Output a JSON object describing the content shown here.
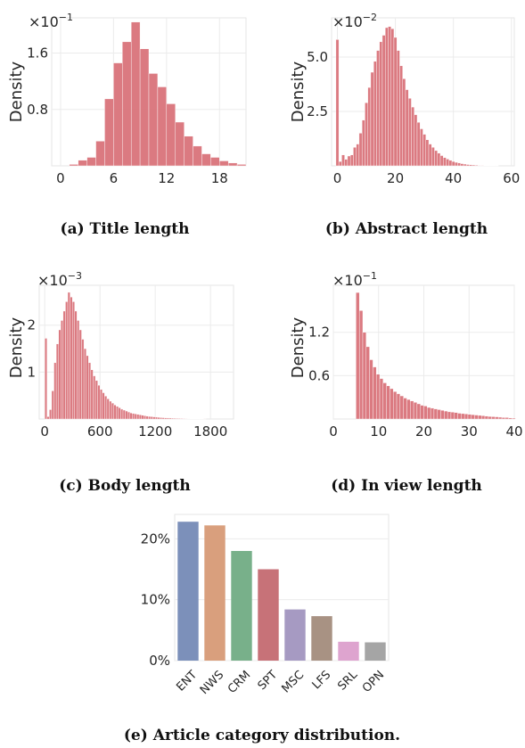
{
  "chart_data": [
    {
      "id": "title",
      "type": "bar",
      "caption": "(a) Title length",
      "ylabel": "Density",
      "multiplier_base": "×10",
      "multiplier_exp": "−1",
      "xlim": [
        -1,
        21
      ],
      "ylim": [
        0,
        2.1
      ],
      "xticks": [
        {
          "v": 0,
          "label": "0"
        },
        {
          "v": 6,
          "label": "6"
        },
        {
          "v": 12,
          "label": "12"
        },
        {
          "v": 18,
          "label": "18"
        }
      ],
      "yticks": [
        {
          "v": 0.8,
          "label": "0.8"
        },
        {
          "v": 1.6,
          "label": "1.6"
        }
      ],
      "bin_start": 1,
      "bin_width": 1,
      "values": [
        0.02,
        0.08,
        0.12,
        0.35,
        0.95,
        1.46,
        1.76,
        2.04,
        1.66,
        1.31,
        1.12,
        0.88,
        0.62,
        0.42,
        0.28,
        0.17,
        0.12,
        0.07,
        0.04,
        0.02
      ],
      "bar_color": "#d9737a"
    },
    {
      "id": "abstract",
      "type": "bar",
      "caption": "(b) Abstract length",
      "ylabel": "Density",
      "multiplier_base": "×10",
      "multiplier_exp": "−2",
      "xlim": [
        -2,
        61
      ],
      "ylim": [
        0,
        6.8
      ],
      "xticks": [
        {
          "v": 0,
          "label": "0"
        },
        {
          "v": 20,
          "label": "20"
        },
        {
          "v": 40,
          "label": "40"
        },
        {
          "v": 60,
          "label": "60"
        }
      ],
      "yticks": [
        {
          "v": 2.5,
          "label": "2.5"
        },
        {
          "v": 5.0,
          "label": "5.0"
        }
      ],
      "bin_start": -0.5,
      "bin_width": 1,
      "values": [
        5.8,
        0.2,
        0.5,
        0.3,
        0.45,
        0.5,
        0.85,
        1.0,
        1.5,
        2.1,
        2.9,
        3.6,
        4.3,
        4.8,
        5.3,
        5.7,
        6.0,
        6.35,
        6.4,
        6.3,
        5.9,
        5.3,
        4.6,
        4.0,
        3.5,
        3.1,
        2.7,
        2.35,
        2.0,
        1.7,
        1.45,
        1.2,
        1.0,
        0.85,
        0.7,
        0.58,
        0.47,
        0.38,
        0.31,
        0.25,
        0.2,
        0.16,
        0.13,
        0.1,
        0.08,
        0.06,
        0.05,
        0.04,
        0.03,
        0.02,
        0.02,
        0.01,
        0.01,
        0.01,
        0.01,
        0.01,
        0.0,
        0.0,
        0.0,
        0.0
      ],
      "bar_color": "#d9737a"
    },
    {
      "id": "body",
      "type": "bar",
      "caption": "(c) Body length",
      "ylabel": "Density",
      "multiplier_base": "×10",
      "multiplier_exp": "−3",
      "xlim": [
        -60,
        2050
      ],
      "ylim": [
        0,
        2.85
      ],
      "xticks": [
        {
          "v": 0,
          "label": "0"
        },
        {
          "v": 600,
          "label": "600"
        },
        {
          "v": 1200,
          "label": "1200"
        },
        {
          "v": 1800,
          "label": "1800"
        }
      ],
      "yticks": [
        {
          "v": 1,
          "label": "1"
        },
        {
          "v": 2,
          "label": "2"
        }
      ],
      "bin_start": 0,
      "bin_width": 25,
      "values": [
        1.72,
        0.05,
        0.2,
        0.6,
        1.2,
        1.6,
        1.9,
        2.1,
        2.3,
        2.5,
        2.7,
        2.6,
        2.5,
        2.3,
        2.1,
        1.9,
        1.7,
        1.5,
        1.35,
        1.2,
        1.05,
        0.92,
        0.82,
        0.72,
        0.63,
        0.56,
        0.49,
        0.43,
        0.38,
        0.34,
        0.3,
        0.27,
        0.24,
        0.21,
        0.19,
        0.17,
        0.15,
        0.13,
        0.12,
        0.11,
        0.1,
        0.09,
        0.08,
        0.07,
        0.06,
        0.055,
        0.05,
        0.045,
        0.04,
        0.035,
        0.03,
        0.028,
        0.025,
        0.022,
        0.02,
        0.018,
        0.016,
        0.014,
        0.012,
        0.011,
        0.01,
        0.009,
        0.008,
        0.007,
        0.006,
        0.005,
        0.005,
        0.004,
        0.004,
        0.003
      ],
      "bar_color": "#d9737a"
    },
    {
      "id": "inview",
      "type": "bar",
      "caption": "(d) In view length",
      "ylabel": "Density",
      "multiplier_base": "×10",
      "multiplier_exp": "−1",
      "xlim": [
        0,
        40
      ],
      "ylim": [
        0,
        1.85
      ],
      "xticks": [
        {
          "v": 0,
          "label": "0"
        },
        {
          "v": 10,
          "label": "10"
        },
        {
          "v": 20,
          "label": "20"
        },
        {
          "v": 30,
          "label": "30"
        },
        {
          "v": 40,
          "label": "40"
        }
      ],
      "yticks": [
        {
          "v": 0.6,
          "label": "0.6"
        },
        {
          "v": 1.2,
          "label": "1.2"
        }
      ],
      "bin_start": 5,
      "bin_width": 0.75,
      "values": [
        1.75,
        1.5,
        1.2,
        1.0,
        0.82,
        0.72,
        0.62,
        0.56,
        0.5,
        0.46,
        0.42,
        0.38,
        0.35,
        0.32,
        0.29,
        0.27,
        0.25,
        0.23,
        0.21,
        0.19,
        0.18,
        0.16,
        0.15,
        0.14,
        0.13,
        0.12,
        0.11,
        0.1,
        0.095,
        0.09,
        0.08,
        0.075,
        0.07,
        0.065,
        0.06,
        0.055,
        0.05,
        0.045,
        0.04,
        0.035,
        0.032,
        0.03,
        0.025,
        0.02,
        0.02,
        0.015,
        0.012
      ],
      "bar_color": "#d9737a"
    },
    {
      "id": "category",
      "type": "bar",
      "caption": "(e) Article category distribution.",
      "categories": [
        "ENT",
        "NWS",
        "CRM",
        "SPT",
        "MSC",
        "LFS",
        "SRL",
        "OPN"
      ],
      "values": [
        22.8,
        22.2,
        18.0,
        15.0,
        8.4,
        7.3,
        3.1,
        3.0
      ],
      "colors": [
        "#7c90ba",
        "#d99f7d",
        "#78b08a",
        "#c77278",
        "#a69ac2",
        "#a89283",
        "#dea4cf",
        "#a5a5a5"
      ],
      "ylim": [
        0,
        24
      ],
      "yticks": [
        {
          "v": 0,
          "label": "0%"
        },
        {
          "v": 10,
          "label": "10%"
        },
        {
          "v": 20,
          "label": "20%"
        }
      ]
    }
  ]
}
